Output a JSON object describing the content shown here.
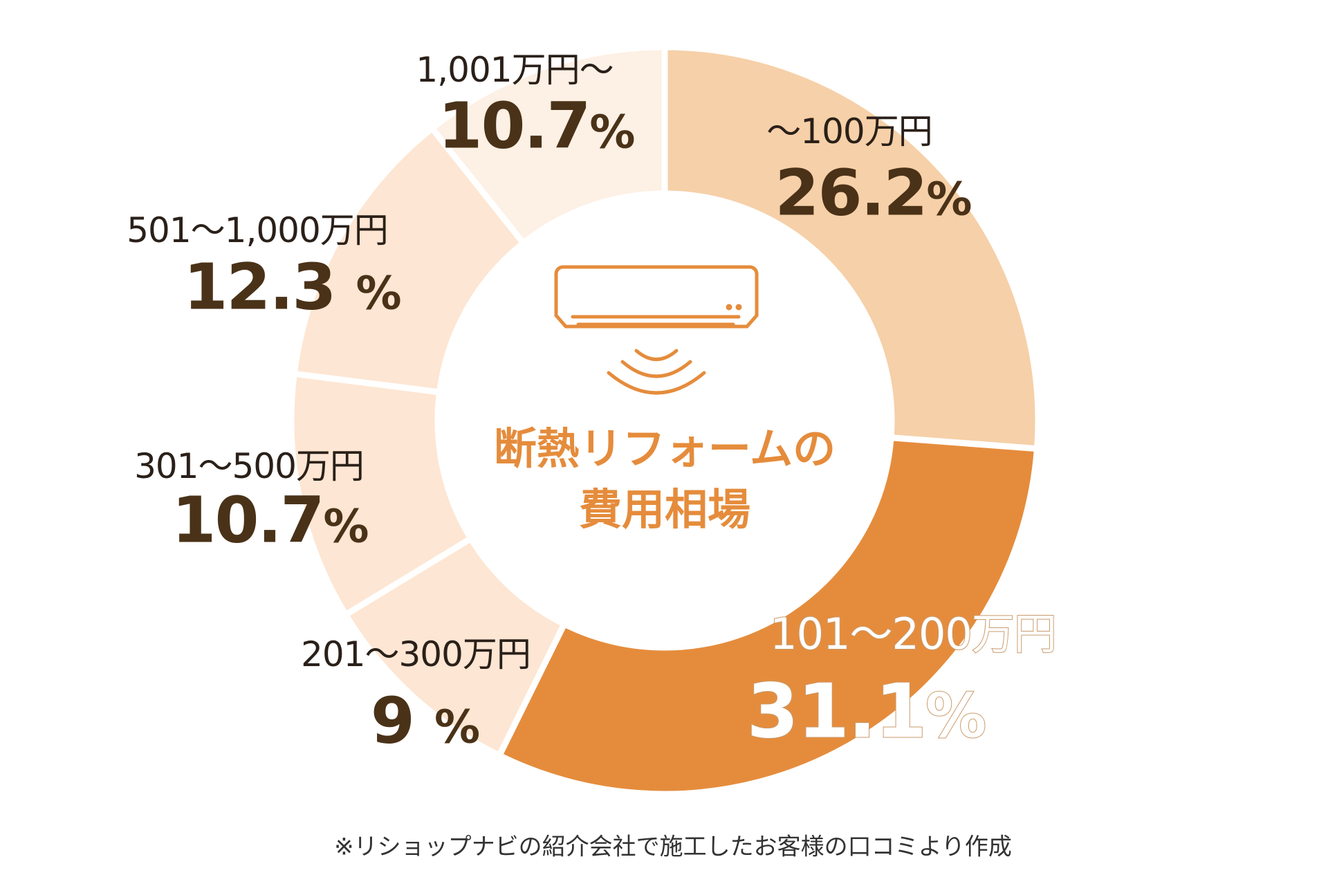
{
  "chart_data": {
    "type": "pie",
    "donut": true,
    "center_title": [
      "断熱リフォームの",
      "費用相場"
    ],
    "center_icon": "air-conditioner-icon",
    "slices": [
      {
        "label": "〜100万円",
        "value": 26.2,
        "value_label": "26.2",
        "color": "#f6d0a8"
      },
      {
        "label": "101〜200万円",
        "value": 31.1,
        "value_label": "31.1",
        "color": "#e58c3c"
      },
      {
        "label": "201〜300万円",
        "value": 9,
        "value_label": "9",
        "color": "#fde6d3"
      },
      {
        "label": "301〜500万円",
        "value": 10.7,
        "value_label": "10.7",
        "color": "#fde6d3"
      },
      {
        "label": "501〜1,000万円",
        "value": 12.3,
        "value_label": "12.3",
        "color": "#fde6d3"
      },
      {
        "label": "1,001万円〜",
        "value": 10.7,
        "value_label": "10.7",
        "color": "#fdf0e4"
      }
    ],
    "unit": "%",
    "footnote": "※リショップナビの紹介会社で施工したお客様の口コミより作成"
  }
}
